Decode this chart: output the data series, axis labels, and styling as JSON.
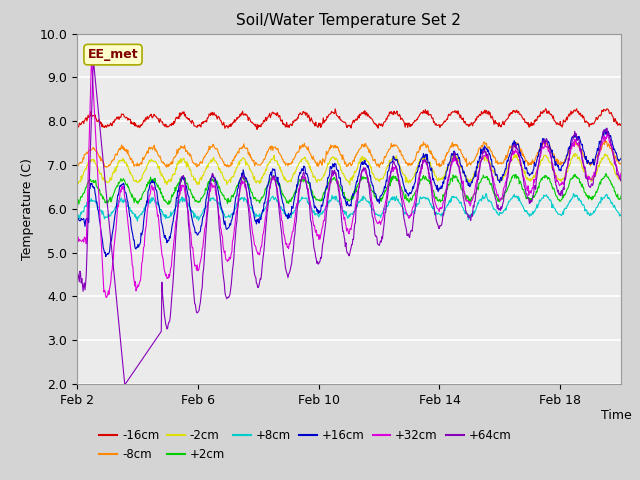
{
  "title": "Soil/Water Temperature Set 2",
  "xlabel": "Time",
  "ylabel": "Temperature (C)",
  "ylim": [
    2.0,
    10.0
  ],
  "yticks": [
    2.0,
    3.0,
    4.0,
    5.0,
    6.0,
    7.0,
    8.0,
    9.0,
    10.0
  ],
  "fig_bg": "#d4d4d4",
  "plot_bg": "#ebebeb",
  "grid_color": "#ffffff",
  "series": [
    {
      "label": "-16cm",
      "color": "#dd0000",
      "base": 8.0,
      "amp_start": 0.12,
      "amp_end": 0.18,
      "converge_day": 18
    },
    {
      "label": "-8cm",
      "color": "#ff8800",
      "base": 7.18,
      "amp_start": 0.2,
      "amp_end": 0.25,
      "converge_day": 18
    },
    {
      "label": "-2cm",
      "color": "#dddd00",
      "base": 6.85,
      "amp_start": 0.25,
      "amp_end": 0.28,
      "converge_day": 18
    },
    {
      "label": "+2cm",
      "color": "#00cc00",
      "base": 6.4,
      "amp_start": 0.25,
      "amp_end": 0.28,
      "converge_day": 18
    },
    {
      "label": "+8cm",
      "color": "#00cccc",
      "base": 6.0,
      "amp_start": 0.2,
      "amp_end": 0.22,
      "converge_day": 18
    },
    {
      "label": "+16cm",
      "color": "#0000cc",
      "base": 5.75,
      "amp_start": 0.55,
      "amp_end": 0.45,
      "converge_day": 12
    },
    {
      "label": "+32cm",
      "color": "#dd00dd",
      "base": 5.3,
      "amp_start": 0.85,
      "amp_end": 0.55,
      "converge_day": 11
    },
    {
      "label": "+64cm",
      "color": "#8800bb",
      "base": 5.5,
      "amp_start": 1.2,
      "amp_end": 0.8,
      "converge_day": 10
    }
  ],
  "xtick_labels": [
    "Feb 2",
    "Feb 6",
    "Feb 10",
    "Feb 14",
    "Feb 18"
  ],
  "xtick_positions": [
    0,
    4,
    8,
    12,
    16
  ],
  "total_days": 19,
  "samples_per_day": 48,
  "annotation_text": "EE_met",
  "legend_colors": [
    "#dd0000",
    "#ff8800",
    "#dddd00",
    "#00cc00",
    "#00cccc",
    "#0000cc",
    "#dd00dd",
    "#8800bb"
  ],
  "legend_labels": [
    "-16cm",
    "-8cm",
    "-2cm",
    "+2cm",
    "+8cm",
    "+16cm",
    "+32cm",
    "+64cm"
  ]
}
